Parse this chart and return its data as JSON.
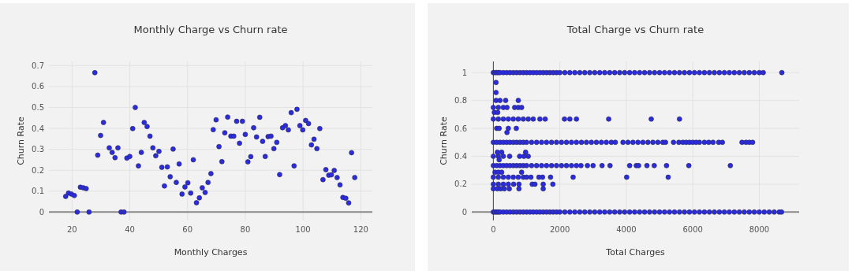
{
  "chart_data": [
    {
      "type": "scatter",
      "title": "Monthly Charge vs Churn rate",
      "xlabel": "Monthly Charges",
      "ylabel": "Churn Rate",
      "xlim": [
        12,
        124
      ],
      "ylim": [
        -0.04,
        0.72
      ],
      "xticks": [
        20,
        40,
        60,
        80,
        100,
        120
      ],
      "yticks": [
        0,
        0.1,
        0.2,
        0.3,
        0.4,
        0.5,
        0.6,
        0.7
      ],
      "grid": true,
      "marker": "circle",
      "series": [
        {
          "color": "#2b2be0",
          "x": [
            17.8,
            18.8,
            19.8,
            20.8,
            21.8,
            22.9,
            23.9,
            24.9,
            25.9,
            27.9,
            28.9,
            29.9,
            30.9,
            32.9,
            33.9,
            34.9,
            35.9,
            37,
            38,
            39,
            40,
            41,
            41.9,
            43,
            44,
            45,
            46,
            47,
            48,
            49,
            50.1,
            51.1,
            52,
            53,
            54,
            55,
            56.1,
            57.1,
            58.1,
            59.1,
            60.1,
            61.1,
            62,
            63.1,
            64.1,
            65.1,
            66.1,
            67.1,
            68.1,
            68.9,
            69.9,
            70.9,
            71.9,
            72.9,
            73.9,
            75,
            76,
            77,
            78,
            79,
            80,
            80.9,
            81.9,
            82.9,
            83.9,
            85,
            86,
            86.9,
            87.9,
            88.9,
            89.9,
            90.9,
            91.9,
            92.9,
            93.9,
            94.9,
            95.9,
            96.9,
            97.9,
            98.9,
            99.9,
            100.9,
            101.9,
            102.9,
            103.8,
            104.8,
            105.8,
            106.9,
            107.9,
            108.9,
            109.8,
            110.8,
            111.8,
            112.8,
            113.8,
            114.8,
            115.8,
            116.8,
            117.9
          ],
          "values": [
            0.075,
            0.091,
            0.086,
            0.079,
            0,
            0.119,
            0.116,
            0.112,
            0,
            0.666,
            0.272,
            0.366,
            0.428,
            0.307,
            0.285,
            0.26,
            0.307,
            0,
            0,
            0.258,
            0.266,
            0.399,
            0.5,
            0.221,
            0.285,
            0.428,
            0.409,
            0.363,
            0.307,
            0.269,
            0.29,
            0.214,
            0.125,
            0.216,
            0.169,
            0.301,
            0.142,
            0.23,
            0.086,
            0.12,
            0.14,
            0.091,
            0.25,
            0.045,
            0.068,
            0.116,
            0.094,
            0.142,
            0.184,
            0.394,
            0.441,
            0.313,
            0.241,
            0.379,
            0.454,
            0.363,
            0.363,
            0.434,
            0.329,
            0.434,
            0.371,
            0.24,
            0.265,
            0.403,
            0.359,
            0.453,
            0.338,
            0.266,
            0.361,
            0.363,
            0.303,
            0.333,
            0.179,
            0.403,
            0.413,
            0.393,
            0.475,
            0.221,
            0.491,
            0.413,
            0.393,
            0.438,
            0.423,
            0.321,
            0.348,
            0.303,
            0.399,
            0.155,
            0.203,
            0.176,
            0.178,
            0.199,
            0.165,
            0.13,
            0.07,
            0.066,
            0.044,
            0.284,
            0.165
          ]
        }
      ]
    },
    {
      "type": "scatter",
      "title": "Total Charge vs Churn rate",
      "xlabel": "Total Charges",
      "ylabel": "Churn Rate",
      "xlim": [
        -650,
        9200
      ],
      "ylim": [
        -0.06,
        1.08
      ],
      "xticks": [
        0,
        2000,
        4000,
        6000,
        8000
      ],
      "yticks": [
        0,
        0.2,
        0.4,
        0.6,
        0.8,
        1
      ],
      "grid": true,
      "marker": "circle",
      "series": [
        {
          "color": "#2b2be0",
          "x": [
            0,
            50,
            100,
            150,
            200,
            300,
            400,
            500,
            600,
            700,
            800,
            900,
            1000,
            1100,
            1200,
            1300,
            1400,
            1500,
            1600,
            1700,
            1800,
            1900,
            2000,
            2150,
            2300,
            2450,
            2600,
            2750,
            2900,
            3050,
            3200,
            3350,
            3500,
            3650,
            3800,
            3950,
            4100,
            4250,
            4400,
            4550,
            4700,
            4850,
            5000,
            5150,
            5300,
            5450,
            5600,
            5750,
            5900,
            6050,
            6200,
            6350,
            6500,
            6650,
            6800,
            6950,
            7100,
            7250,
            7400,
            7550,
            7700,
            7850,
            8000,
            8120,
            8680
          ],
          "values": [
            1,
            1,
            1,
            1,
            1,
            1,
            1,
            1,
            1,
            1,
            1,
            1,
            1,
            1,
            1,
            1,
            1,
            1,
            1,
            1,
            1,
            1,
            1,
            1,
            1,
            1,
            1,
            1,
            1,
            1,
            1,
            1,
            1,
            1,
            1,
            1,
            1,
            1,
            1,
            1,
            1,
            1,
            1,
            1,
            1,
            1,
            1,
            1,
            1,
            1,
            1,
            1,
            1,
            1,
            1,
            1,
            1,
            1,
            1,
            1,
            1,
            1,
            1,
            1,
            1
          ]
        },
        {
          "color": "#2b2be0",
          "x": [
            0,
            50,
            100,
            150,
            200,
            300,
            400,
            500,
            600,
            700,
            800,
            900,
            1000,
            1100,
            1200,
            1300,
            1400,
            1500,
            1600,
            1700,
            1800,
            1900,
            2000,
            2150,
            2300,
            2450,
            2600,
            2750,
            2900,
            3050,
            3200,
            3350,
            3500,
            3650,
            3800,
            3950,
            4100,
            4250,
            4400,
            4550,
            4700,
            4850,
            5000,
            5150,
            5300,
            5450,
            5600,
            5750,
            5900,
            6050,
            6200,
            6350,
            6500,
            6650,
            6800,
            6950,
            7100,
            7250,
            7400,
            7550,
            7700,
            7850,
            8000,
            8150,
            8300,
            8450,
            8600,
            8670
          ],
          "values": [
            0,
            0,
            0,
            0,
            0,
            0,
            0,
            0,
            0,
            0,
            0,
            0,
            0,
            0,
            0,
            0,
            0,
            0,
            0,
            0,
            0,
            0,
            0,
            0,
            0,
            0,
            0,
            0,
            0,
            0,
            0,
            0,
            0,
            0,
            0,
            0,
            0,
            0,
            0,
            0,
            0,
            0,
            0,
            0,
            0,
            0,
            0,
            0,
            0,
            0,
            0,
            0,
            0,
            0,
            0,
            0,
            0,
            0,
            0,
            0,
            0,
            0,
            0,
            0,
            0,
            0,
            0,
            0
          ]
        },
        {
          "color": "#2b2be0",
          "x": [
            0,
            100,
            200,
            300,
            400,
            500,
            600,
            700,
            800,
            900,
            1000,
            1150,
            1300,
            1450,
            1600,
            1750,
            1900,
            2050,
            2200,
            2350,
            2500,
            2650,
            2800,
            2950,
            3100,
            3250,
            3400,
            3550,
            3670,
            3900,
            4050,
            4200,
            4350,
            4500,
            4650,
            4800,
            4950,
            5100,
            5180,
            5420,
            5580,
            5700,
            5800,
            5900,
            6000,
            6100,
            6200,
            6350,
            6480,
            6610,
            6780,
            6890,
            7480,
            7600,
            7700,
            7800
          ],
          "values": [
            0.5,
            0.5,
            0.5,
            0.5,
            0.5,
            0.5,
            0.5,
            0.5,
            0.5,
            0.5,
            0.5,
            0.5,
            0.5,
            0.5,
            0.5,
            0.5,
            0.5,
            0.5,
            0.5,
            0.5,
            0.5,
            0.5,
            0.5,
            0.5,
            0.5,
            0.5,
            0.5,
            0.5,
            0.5,
            0.5,
            0.5,
            0.5,
            0.5,
            0.5,
            0.5,
            0.5,
            0.5,
            0.5,
            0.5,
            0.5,
            0.5,
            0.5,
            0.5,
            0.5,
            0.5,
            0.5,
            0.5,
            0.5,
            0.5,
            0.5,
            0.5,
            0.5,
            0.5,
            0.5,
            0.5,
            0.5
          ]
        },
        {
          "color": "#2b2be0",
          "x": [
            0,
            100,
            200,
            300,
            400,
            500,
            600,
            700,
            800,
            900,
            1000,
            1150,
            1300,
            1450,
            1600,
            1750,
            1900,
            2050,
            2200,
            2350,
            2500,
            2636,
            2830,
            3000,
            3270,
            3510,
            4100,
            4300,
            4370,
            4620,
            4840,
            5210,
            5880,
            7130
          ],
          "values": [
            0.333,
            0.333,
            0.333,
            0.333,
            0.333,
            0.333,
            0.333,
            0.333,
            0.333,
            0.333,
            0.333,
            0.333,
            0.333,
            0.333,
            0.333,
            0.333,
            0.333,
            0.333,
            0.333,
            0.333,
            0.333,
            0.333,
            0.333,
            0.333,
            0.333,
            0.333,
            0.333,
            0.333,
            0.333,
            0.333,
            0.333,
            0.333,
            0.333,
            0.333
          ]
        },
        {
          "color": "#2b2be0",
          "x": [
            0,
            150,
            300,
            450,
            600,
            750,
            900,
            1050,
            1200,
            1400,
            1560,
            2140,
            2300,
            2500,
            3470,
            4750,
            5600
          ],
          "values": [
            0.667,
            0.667,
            0.667,
            0.667,
            0.667,
            0.667,
            0.667,
            0.667,
            0.667,
            0.667,
            0.667,
            0.667,
            0.667,
            0.667,
            0.667,
            0.667,
            0.667
          ]
        },
        {
          "color": "#2b2be0",
          "x": [
            0,
            150,
            300,
            450,
            600,
            750,
            900,
            1000,
            1130,
            1370,
            1480,
            1720,
            2400,
            4010,
            5260
          ],
          "values": [
            0.25,
            0.25,
            0.25,
            0.25,
            0.25,
            0.25,
            0.25,
            0.25,
            0.25,
            0.25,
            0.25,
            0.25,
            0.25,
            0.25,
            0.25
          ]
        },
        {
          "color": "#2b2be0",
          "x": [
            0,
            150,
            300,
            450,
            610,
            770,
            1170,
            1250,
            1500,
            1790
          ],
          "values": [
            0.2,
            0.2,
            0.2,
            0.2,
            0.2,
            0.2,
            0.2,
            0.2,
            0.2,
            0.2
          ]
        },
        {
          "color": "#2b2be0",
          "x": [
            0,
            120,
            220,
            330,
            480,
            770,
            1500
          ],
          "values": [
            0.167,
            0.167,
            0.167,
            0.167,
            0.167,
            0.167,
            0.167
          ]
        },
        {
          "color": "#2b2be0",
          "x": [
            0,
            150,
            300,
            410,
            640,
            750,
            850,
            80,
            200,
            370,
            750,
            100,
            175,
            450,
            690,
            0,
            150,
            300,
            490,
            790,
            920,
            1050,
            120,
            250,
            970,
            50,
            150,
            250,
            850,
            175,
            410,
            80,
            80,
            30,
            130
          ],
          "values": [
            0.75,
            0.75,
            0.75,
            0.75,
            0.75,
            0.75,
            0.75,
            0.8,
            0.8,
            0.8,
            0.8,
            0.6,
            0.6,
            0.6,
            0.6,
            0.4,
            0.4,
            0.4,
            0.4,
            0.4,
            0.4,
            0.4,
            0.429,
            0.429,
            0.429,
            0.286,
            0.286,
            0.286,
            0.286,
            0.375,
            0.571,
            0.857,
            0.929,
            0.714,
            0.714
          ]
        }
      ]
    }
  ]
}
